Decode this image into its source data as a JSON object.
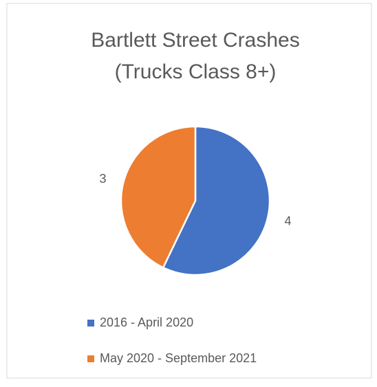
{
  "chart_data": {
    "type": "pie",
    "title": [
      "Bartlett Street Crashes",
      "(Trucks Class 8+)"
    ],
    "categories": [
      "2016 - April 2020",
      "May 2020 - September 2021"
    ],
    "values": [
      4,
      3
    ],
    "colors": [
      "#4472c4",
      "#ed7d31"
    ],
    "legend": "bottom"
  }
}
